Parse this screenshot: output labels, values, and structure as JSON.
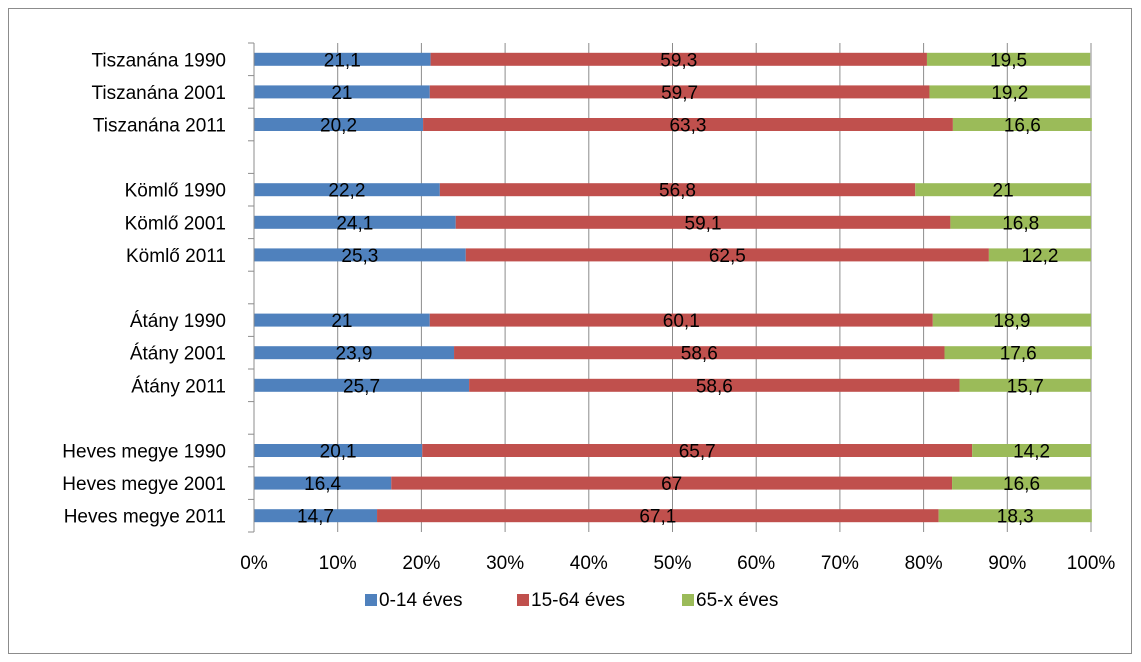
{
  "chart_data": {
    "type": "bar",
    "orientation": "horizontal",
    "stacked": "percent",
    "title": "",
    "xlabel": "",
    "ylabel": "",
    "xlim": [
      0,
      100
    ],
    "x_ticks": [
      "0%",
      "10%",
      "20%",
      "30%",
      "40%",
      "50%",
      "60%",
      "70%",
      "80%",
      "90%",
      "100%"
    ],
    "grid": "vertical",
    "legend_position": "bottom",
    "categories": [
      "Tiszanána 1990",
      "Tiszanána 2001",
      "Tiszanána 2011",
      "",
      "Kömlő 1990",
      "Kömlő 2001",
      "Kömlő 2011",
      "",
      "Átány 1990",
      "Átány 2001",
      "Átány 2011",
      "",
      "Heves megye 1990",
      "Heves megye 2001",
      "Heves megye 2011"
    ],
    "series": [
      {
        "name": "0-14 éves",
        "color": "#4f81bd",
        "values": [
          21.1,
          21,
          20.2,
          null,
          22.2,
          24.1,
          25.3,
          null,
          21,
          23.9,
          25.7,
          null,
          20.1,
          16.4,
          14.7
        ],
        "labels": [
          "21,1",
          "21",
          "20,2",
          "",
          "22,2",
          "24,1",
          "25,3",
          "",
          "21",
          "23,9",
          "25,7",
          "",
          "20,1",
          "16,4",
          "14,7"
        ]
      },
      {
        "name": "15-64 éves",
        "color": "#c0504d",
        "values": [
          59.3,
          59.7,
          63.3,
          null,
          56.8,
          59.1,
          62.5,
          null,
          60.1,
          58.6,
          58.6,
          null,
          65.7,
          67,
          67.1
        ],
        "labels": [
          "59,3",
          "59,7",
          "63,3",
          "",
          "56,8",
          "59,1",
          "62,5",
          "",
          "60,1",
          "58,6",
          "58,6",
          "",
          "65,7",
          "67",
          "67,1"
        ]
      },
      {
        "name": "65-x éves",
        "color": "#9bbb59",
        "values": [
          19.5,
          19.2,
          16.6,
          null,
          21,
          16.8,
          12.2,
          null,
          18.9,
          17.6,
          15.7,
          null,
          14.2,
          16.6,
          18.3
        ],
        "labels": [
          "19,5",
          "19,2",
          "16,6",
          "",
          "21",
          "16,8",
          "12,2",
          "",
          "18,9",
          "17,6",
          "15,7",
          "",
          "14,2",
          "16,6",
          "18,3"
        ]
      }
    ]
  }
}
